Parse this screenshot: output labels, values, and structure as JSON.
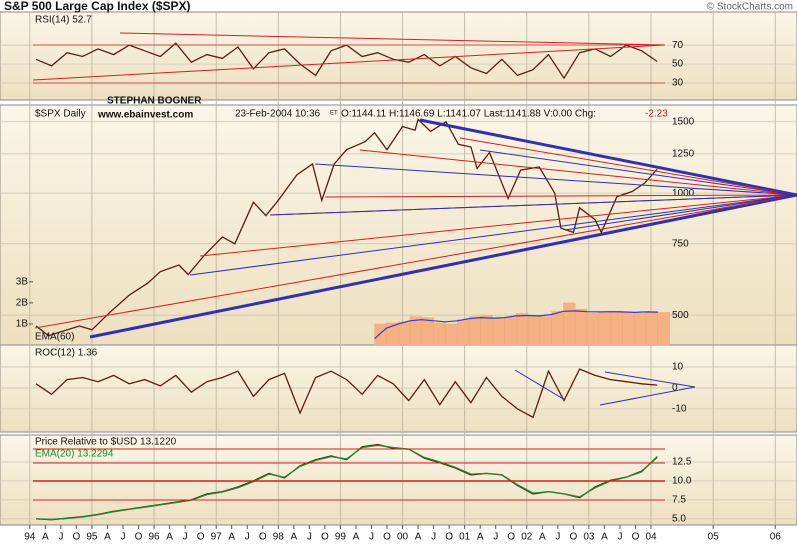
{
  "header": {
    "title": "S&P 500 Large Cap Index ($SPX)",
    "credit": "© StockCharts.com"
  },
  "chart_data": [
    {
      "type": "line",
      "label": "RSI(14) 52.7",
      "ylim": [
        12,
        105
      ],
      "yticks": [
        30,
        50,
        70
      ],
      "x": [
        1994.1,
        1994.35,
        1994.6,
        1994.85,
        1995.1,
        1995.35,
        1995.6,
        1995.85,
        1996.1,
        1996.35,
        1996.6,
        1996.85,
        1997.1,
        1997.35,
        1997.6,
        1997.85,
        1998.1,
        1998.35,
        1998.6,
        1998.85,
        1999.1,
        1999.35,
        1999.6,
        1999.85,
        2000.1,
        2000.35,
        2000.6,
        2000.85,
        2001.1,
        2001.35,
        2001.6,
        2001.85,
        2002.1,
        2002.35,
        2002.6,
        2002.85,
        2003.1,
        2003.35,
        2003.6,
        2003.85,
        2004.1
      ],
      "series": [
        {
          "color": "#5a1e0e",
          "values": [
            55,
            48,
            62,
            58,
            66,
            60,
            70,
            64,
            58,
            72,
            52,
            60,
            56,
            68,
            45,
            62,
            66,
            50,
            38,
            64,
            70,
            58,
            62,
            55,
            52,
            60,
            48,
            58,
            46,
            40,
            55,
            38,
            44,
            60,
            35,
            62,
            66,
            58,
            70,
            64,
            52.7
          ]
        }
      ]
    },
    {
      "type": "line",
      "log": true,
      "label": "$SPX Daily",
      "date": "23-Feb-2004 10:36",
      "tz": "ET",
      "quote": "O:1144.11 H:1146.69 L:1141.07 Last:1141.88 V:0.00 Chg:",
      "change": "-2.23",
      "annotations": [
        "STEPHAN BOGNER",
        "www.ebainvest.com"
      ],
      "ylim": [
        422,
        1650
      ],
      "yticks": [
        500,
        750,
        1000,
        1250,
        1500
      ],
      "x": [
        1994.1,
        1994.3,
        1994.5,
        1994.8,
        1995,
        1995.3,
        1995.6,
        1995.9,
        1996.1,
        1996.4,
        1996.55,
        1996.8,
        1997.1,
        1997.3,
        1997.6,
        1997.8,
        1998,
        1998.3,
        1998.55,
        1998.7,
        1998.9,
        1999.1,
        1999.4,
        1999.55,
        1999.75,
        2000,
        2000.2,
        2000.25,
        2000.45,
        2000.7,
        2000.9,
        2001.1,
        2001.2,
        2001.4,
        2001.7,
        2001.9,
        2002.2,
        2002.45,
        2002.55,
        2002.75,
        2002.85,
        2003.1,
        2003.2,
        2003.45,
        2003.7,
        2003.9,
        2004.1
      ],
      "series": [
        {
          "color": "#5a1e0e",
          "values": [
            470,
            445,
            455,
            470,
            460,
            510,
            560,
            600,
            640,
            665,
            630,
            700,
            780,
            750,
            950,
            880,
            960,
            1110,
            1180,
            960,
            1180,
            1280,
            1340,
            1410,
            1280,
            1460,
            1430,
            1520,
            1420,
            1500,
            1320,
            1300,
            1150,
            1260,
            970,
            1140,
            1160,
            1000,
            820,
            800,
            920,
            860,
            800,
            980,
            1010,
            1060,
            1146
          ]
        }
      ],
      "volume": {
        "type": "bar",
        "label": "EMA(60)",
        "color": "#f4b183",
        "ema_color": "#3a3ac8",
        "y2lim": [
          0,
          11400000000.0
        ],
        "y2ticks": [
          {
            "value": 1000000000.0,
            "label": "1B"
          },
          {
            "value": 2000000000.0,
            "label": "2B"
          },
          {
            "value": 3000000000.0,
            "label": "3B"
          }
        ],
        "x": [
          1999.55,
          1999.74,
          1999.93,
          2000.12,
          2000.31,
          2000.5,
          2000.69,
          2000.88,
          2001.07,
          2001.26,
          2001.45,
          2001.64,
          2001.83,
          2002.02,
          2002.21,
          2002.4,
          2002.59,
          2002.78,
          2002.97,
          2003.16,
          2003.35,
          2003.54,
          2003.73,
          2003.92,
          2004.11
        ],
        "values": [
          1000000000.0,
          1050000000.0,
          1100000000.0,
          1350000000.0,
          1300000000.0,
          1050000000.0,
          1000000000.0,
          1200000000.0,
          1350000000.0,
          1400000000.0,
          1250000000.0,
          1300000000.0,
          1500000000.0,
          1400000000.0,
          1350000000.0,
          1600000000.0,
          2000000000.0,
          1700000000.0,
          1500000000.0,
          1550000000.0,
          1600000000.0,
          1550000000.0,
          1500000000.0,
          1600000000.0,
          1550000000.0
        ],
        "ema": [
          300000000.0,
          800000000.0,
          1000000000.0,
          1150000000.0,
          1200000000.0,
          1150000000.0,
          1100000000.0,
          1150000000.0,
          1250000000.0,
          1300000000.0,
          1280000000.0,
          1300000000.0,
          1380000000.0,
          1400000000.0,
          1380000000.0,
          1450000000.0,
          1600000000.0,
          1620000000.0,
          1580000000.0,
          1570000000.0,
          1580000000.0,
          1570000000.0,
          1550000000.0,
          1570000000.0,
          1560000000.0
        ]
      }
    },
    {
      "type": "line",
      "label": "ROC(12) 1.36",
      "ylim": [
        -21,
        20.5
      ],
      "yticks": [
        -10,
        0,
        10
      ],
      "x": [
        1994.1,
        1994.35,
        1994.6,
        1994.85,
        1995.1,
        1995.35,
        1995.6,
        1995.85,
        1996.1,
        1996.35,
        1996.6,
        1996.85,
        1997.1,
        1997.35,
        1997.6,
        1997.85,
        1998.1,
        1998.35,
        1998.6,
        1998.85,
        1999.1,
        1999.35,
        1999.6,
        1999.85,
        2000.1,
        2000.35,
        2000.6,
        2000.85,
        2001.1,
        2001.35,
        2001.6,
        2001.85,
        2002.1,
        2002.35,
        2002.6,
        2002.85,
        2003.1,
        2003.35,
        2003.6,
        2003.85,
        2004.1
      ],
      "series": [
        {
          "color": "#5a1e0e",
          "values": [
            2,
            -3,
            4,
            5,
            3,
            6,
            2,
            4,
            1,
            6,
            -2,
            3,
            5,
            8,
            -4,
            4,
            7,
            -12,
            5,
            8,
            4,
            -3,
            6,
            2,
            -6,
            4,
            -8,
            3,
            -7,
            5,
            -4,
            -10,
            -14,
            8,
            -6,
            9,
            6,
            4,
            3,
            2,
            1.36
          ]
        }
      ]
    },
    {
      "type": "line",
      "ylim": [
        4.2,
        16.05
      ],
      "yticks": [
        {
          "value": 5,
          "label": "5.0"
        },
        7.5,
        {
          "value": 10,
          "label": "10.0"
        },
        12.5
      ],
      "xlim": [
        1993.52,
        2006.35
      ],
      "xticks": [
        {
          "value": 1994,
          "label": "94"
        },
        {
          "value": 1994.25,
          "label": "A"
        },
        {
          "value": 1994.5,
          "label": "J"
        },
        {
          "value": 1994.75,
          "label": "O"
        },
        {
          "value": 1995,
          "label": "95"
        },
        {
          "value": 1995.25,
          "label": "A"
        },
        {
          "value": 1995.5,
          "label": "J"
        },
        {
          "value": 1995.75,
          "label": "O"
        },
        {
          "value": 1996,
          "label": "96"
        },
        {
          "value": 1996.25,
          "label": "A"
        },
        {
          "value": 1996.5,
          "label": "J"
        },
        {
          "value": 1996.75,
          "label": "O"
        },
        {
          "value": 1997,
          "label": "97"
        },
        {
          "value": 1997.25,
          "label": "A"
        },
        {
          "value": 1997.5,
          "label": "J"
        },
        {
          "value": 1997.75,
          "label": "O"
        },
        {
          "value": 1998,
          "label": "98"
        },
        {
          "value": 1998.25,
          "label": "A"
        },
        {
          "value": 1998.5,
          "label": "J"
        },
        {
          "value": 1998.75,
          "label": "O"
        },
        {
          "value": 1999,
          "label": "99"
        },
        {
          "value": 1999.25,
          "label": "A"
        },
        {
          "value": 1999.5,
          "label": "J"
        },
        {
          "value": 1999.75,
          "label": "O"
        },
        {
          "value": 2000,
          "label": "00"
        },
        {
          "value": 2000.25,
          "label": "A"
        },
        {
          "value": 2000.5,
          "label": "J"
        },
        {
          "value": 2000.75,
          "label": "O"
        },
        {
          "value": 2001,
          "label": "01"
        },
        {
          "value": 2001.25,
          "label": "A"
        },
        {
          "value": 2001.5,
          "label": "J"
        },
        {
          "value": 2001.75,
          "label": "O"
        },
        {
          "value": 2002,
          "label": "02"
        },
        {
          "value": 2002.25,
          "label": "A"
        },
        {
          "value": 2002.5,
          "label": "J"
        },
        {
          "value": 2002.75,
          "label": "O"
        },
        {
          "value": 2003,
          "label": "03"
        },
        {
          "value": 2003.25,
          "label": "A"
        },
        {
          "value": 2003.5,
          "label": "J"
        },
        {
          "value": 2003.75,
          "label": "O"
        },
        {
          "value": 2004,
          "label": "04"
        },
        {
          "value": 2005,
          "label": "05"
        },
        {
          "value": 2006,
          "label": "06"
        }
      ],
      "x": [
        1994.1,
        1994.35,
        1994.6,
        1994.85,
        1995.1,
        1995.35,
        1995.6,
        1995.85,
        1996.1,
        1996.35,
        1996.6,
        1996.85,
        1997.1,
        1997.35,
        1997.6,
        1997.85,
        1998.1,
        1998.35,
        1998.6,
        1998.85,
        1999.1,
        1999.35,
        1999.6,
        1999.85,
        2000.1,
        2000.35,
        2000.6,
        2000.85,
        2001.1,
        2001.35,
        2001.6,
        2001.85,
        2002.1,
        2002.35,
        2002.6,
        2002.85,
        2003.1,
        2003.35,
        2003.6,
        2003.85,
        2004.1
      ],
      "series": [
        {
          "name": "Price Relative to $USD 13.1220",
          "color": "#5a1e0e",
          "values": [
            5.0,
            4.9,
            5.1,
            5.3,
            5.6,
            6.0,
            6.3,
            6.6,
            6.9,
            7.2,
            7.5,
            8.3,
            8.6,
            9.2,
            10.0,
            11.0,
            10.4,
            12.0,
            12.8,
            13.3,
            12.8,
            14.5,
            14.8,
            14.3,
            14.2,
            13.0,
            12.4,
            11.7,
            10.8,
            11.0,
            10.8,
            9.4,
            8.3,
            8.6,
            8.3,
            7.8,
            9.2,
            10.1,
            10.5,
            11.3,
            13.12
          ]
        },
        {
          "name": "EMA(20) 13.2294",
          "color": "#1f8a2a",
          "values": [
            5.0,
            4.95,
            5.05,
            5.25,
            5.55,
            5.95,
            6.25,
            6.55,
            6.85,
            7.15,
            7.45,
            8.2,
            8.55,
            9.1,
            9.9,
            10.9,
            10.5,
            11.9,
            12.7,
            13.2,
            12.9,
            14.4,
            14.7,
            14.4,
            14.2,
            13.1,
            12.5,
            11.8,
            10.9,
            11.0,
            10.8,
            9.5,
            8.4,
            8.6,
            8.3,
            7.9,
            9.1,
            10.0,
            10.5,
            11.2,
            13.2294
          ]
        }
      ]
    }
  ]
}
